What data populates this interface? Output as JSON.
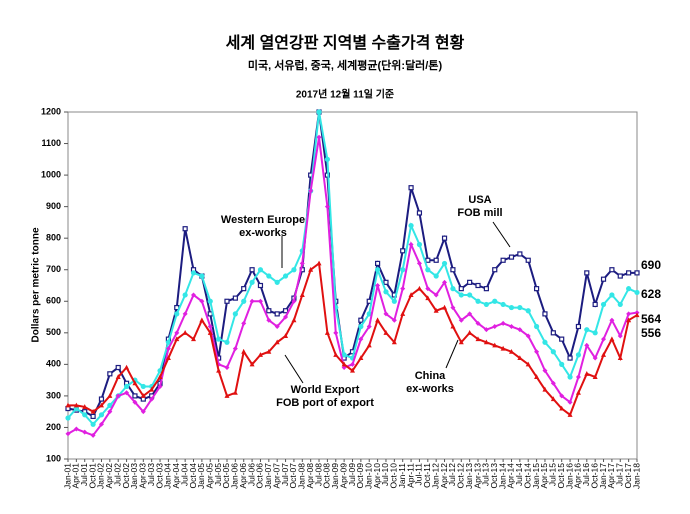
{
  "chart_data": {
    "type": "line",
    "title": "세계 열연강판 지역별 수출가격 현황",
    "subtitle": "미국, 서유럽, 중국, 세계평균(단위:달러/톤)",
    "date_note": "2017년 12월 11일 기준",
    "ylabel": "Dollars per metric tonne",
    "categories": [
      "Jan-01",
      "Apr-01",
      "Jul-01",
      "Oct-01",
      "Jan-02",
      "Apr-02",
      "Jul-02",
      "Oct-02",
      "Jan-03",
      "Apr-03",
      "Jul-03",
      "Oct-03",
      "Jan-04",
      "Apr-04",
      "Jul-04",
      "Oct-04",
      "Jan-05",
      "Apr-05",
      "Jul-05",
      "Oct-05",
      "Jan-06",
      "Apr-06",
      "Jul-06",
      "Oct-06",
      "Jan-07",
      "Apr-07",
      "Jul-07",
      "Oct-07",
      "Jan-08",
      "Apr-08",
      "Jul-08",
      "Oct-08",
      "Jan-09",
      "Apr-09",
      "Jul-09",
      "Oct-09",
      "Jan-10",
      "Apr-10",
      "Jul-10",
      "Oct-10",
      "Jan-11",
      "Apr-11",
      "Jul-11",
      "Oct-11",
      "Jan-12",
      "Apr-12",
      "Jul-12",
      "Oct-12",
      "Jan-13",
      "Apr-13",
      "Jul-13",
      "Oct-13",
      "Jan-14",
      "Apr-14",
      "Jul-14",
      "Oct-14",
      "Jan-15",
      "Apr-15",
      "Jul-15",
      "Oct-15",
      "Jan-16",
      "Apr-16",
      "Jul-16",
      "Oct-16",
      "Jan-17",
      "Apr-17",
      "Jul-17",
      "Oct-17",
      "Jan-18"
    ],
    "series": [
      {
        "name": "USA\nFOB mill",
        "color": "#1c1c80",
        "marker": "square",
        "values": [
          260,
          255,
          250,
          235,
          290,
          370,
          390,
          340,
          300,
          290,
          300,
          340,
          480,
          580,
          830,
          700,
          680,
          560,
          420,
          600,
          610,
          640,
          700,
          650,
          570,
          560,
          570,
          610,
          700,
          1000,
          1200,
          1000,
          600,
          420,
          440,
          540,
          600,
          720,
          660,
          620,
          760,
          960,
          880,
          730,
          730,
          800,
          700,
          640,
          660,
          650,
          640,
          700,
          730,
          740,
          750,
          730,
          640,
          560,
          500,
          480,
          420,
          520,
          690,
          590,
          670,
          700,
          680,
          690,
          690
        ]
      },
      {
        "name": "Western Europe\nex-works",
        "color": "#33e6e6",
        "marker": "circle",
        "values": [
          230,
          260,
          240,
          210,
          240,
          270,
          300,
          330,
          350,
          330,
          330,
          380,
          470,
          560,
          620,
          690,
          680,
          600,
          480,
          470,
          560,
          600,
          660,
          700,
          680,
          660,
          680,
          700,
          760,
          950,
          1200,
          1050,
          580,
          430,
          420,
          520,
          560,
          700,
          630,
          600,
          700,
          840,
          780,
          700,
          680,
          720,
          640,
          620,
          620,
          600,
          590,
          600,
          590,
          580,
          580,
          570,
          520,
          470,
          440,
          400,
          360,
          430,
          510,
          500,
          590,
          620,
          590,
          640,
          628
        ]
      },
      {
        "name": "China\nex-works",
        "color": "#e020e0",
        "marker": "diamond",
        "values": [
          180,
          195,
          185,
          175,
          210,
          250,
          300,
          310,
          280,
          250,
          290,
          330,
          450,
          500,
          560,
          620,
          600,
          520,
          400,
          390,
          450,
          530,
          600,
          600,
          540,
          520,
          550,
          600,
          720,
          950,
          1120,
          900,
          500,
          390,
          400,
          480,
          520,
          650,
          560,
          540,
          640,
          780,
          720,
          640,
          620,
          660,
          580,
          540,
          560,
          530,
          510,
          520,
          530,
          520,
          510,
          490,
          440,
          380,
          340,
          300,
          280,
          360,
          460,
          420,
          480,
          540,
          490,
          560,
          564
        ]
      },
      {
        "name": "World Export\nFOB port of export",
        "color": "#e01010",
        "marker": "triangle",
        "values": [
          270,
          270,
          265,
          250,
          270,
          300,
          360,
          390,
          340,
          300,
          320,
          360,
          420,
          480,
          500,
          480,
          540,
          500,
          380,
          300,
          310,
          440,
          400,
          430,
          440,
          470,
          490,
          540,
          620,
          700,
          720,
          500,
          430,
          400,
          380,
          420,
          460,
          540,
          500,
          470,
          560,
          620,
          640,
          610,
          570,
          580,
          520,
          470,
          500,
          480,
          470,
          460,
          450,
          440,
          420,
          400,
          360,
          320,
          290,
          260,
          240,
          310,
          370,
          360,
          430,
          480,
          420,
          540,
          556
        ]
      }
    ],
    "ylim": [
      100,
      1200
    ],
    "yticks": [
      100,
      200,
      300,
      400,
      500,
      600,
      700,
      800,
      900,
      1000,
      1100,
      1200
    ]
  }
}
